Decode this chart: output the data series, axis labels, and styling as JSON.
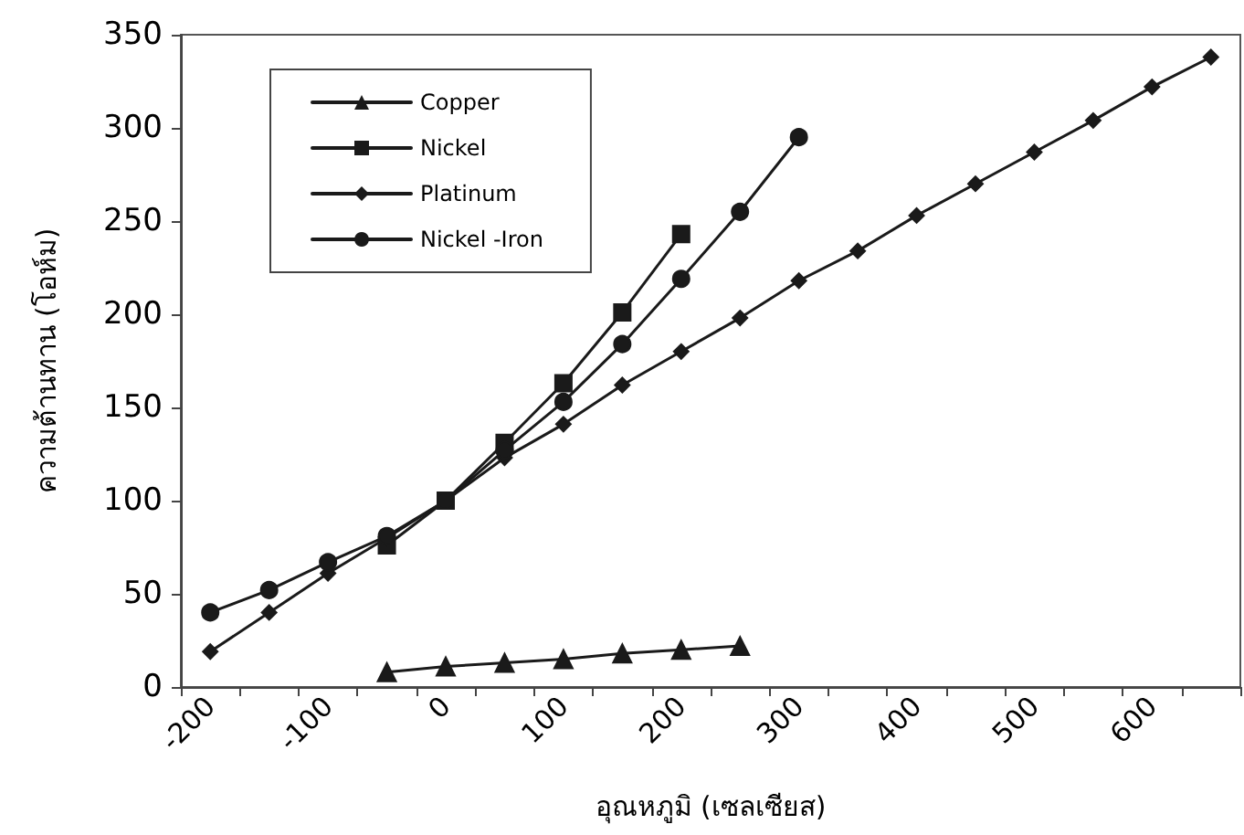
{
  "chart_data": {
    "type": "line",
    "xlabel": "อุณหภูมิ (เซลเซียส)",
    "ylabel": "ความต้านทาน (โอห์ม)",
    "categories": [
      "-200",
      null,
      "-100",
      null,
      "0",
      null,
      "100",
      null,
      "200",
      null,
      "300",
      null,
      "400",
      null,
      "500",
      null,
      "600",
      null
    ],
    "series": [
      {
        "name": "Copper",
        "color": "#1a1a1a",
        "marker": "triangle",
        "values": [
          null,
          null,
          null,
          8,
          11,
          13,
          15,
          18,
          20,
          22,
          null,
          null,
          null,
          null,
          null,
          null,
          null,
          null
        ]
      },
      {
        "name": "Nickel",
        "color": "#1a1a1a",
        "marker": "square",
        "values": [
          null,
          null,
          null,
          76,
          100,
          131,
          163,
          201,
          243,
          null,
          null,
          null,
          null,
          null,
          null,
          null,
          null,
          null
        ]
      },
      {
        "name": "Platinum",
        "color": "#1a1a1a",
        "marker": "diamond",
        "values": [
          19,
          40,
          61,
          80,
          100,
          123,
          141,
          162,
          180,
          198,
          218,
          234,
          253,
          270,
          287,
          304,
          322,
          338
        ]
      },
      {
        "name": "Nickel -Iron",
        "color": "#1a1a1a",
        "marker": "circle",
        "values": [
          40,
          52,
          67,
          81,
          100,
          127,
          153,
          184,
          219,
          255,
          295,
          null,
          null,
          null,
          null,
          null,
          null,
          null
        ]
      }
    ],
    "ylim": [
      0,
      350
    ],
    "yticks": [
      0,
      50,
      100,
      150,
      200,
      250,
      300,
      350
    ],
    "grid": false,
    "legend": "top left",
    "line_style": "solid"
  }
}
